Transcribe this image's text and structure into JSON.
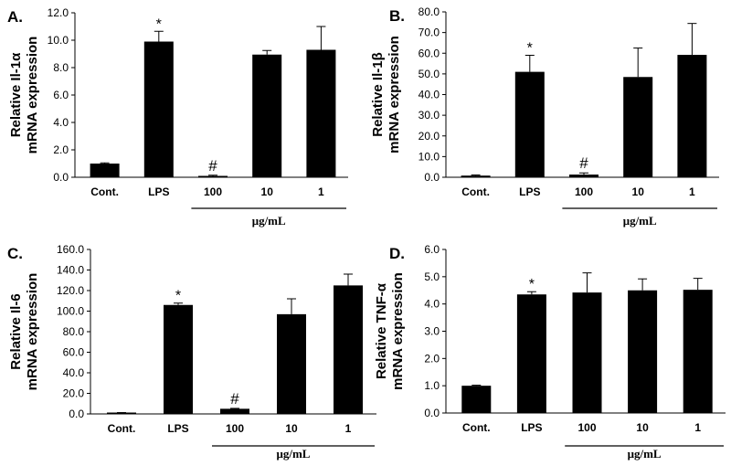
{
  "panels_order": [
    "A",
    "B",
    "C",
    "D"
  ],
  "units_label": "μg/mL",
  "chart_data": [
    {
      "type": "bar",
      "panel_label": "A.",
      "ylabel_line1": "Relative Il-1α",
      "ylabel_line2": "mRNA expression",
      "categories": [
        "Cont.",
        "LPS",
        "100",
        "10",
        "1"
      ],
      "values": [
        1.0,
        9.9,
        0.1,
        8.95,
        9.3
      ],
      "errors": [
        0.05,
        0.75,
        0.05,
        0.3,
        1.7
      ],
      "annotations": [
        "",
        "*",
        "#",
        "",
        ""
      ],
      "ylim": [
        0,
        12
      ],
      "yticks": [
        "0.0",
        "2.0",
        "4.0",
        "6.0",
        "8.0",
        "10.0",
        "12.0"
      ],
      "xgroup_label": "μg/mL",
      "group_range": [
        2,
        4
      ],
      "bar_color": "#000000"
    },
    {
      "type": "bar",
      "panel_label": "B.",
      "ylabel_line1": "Relative Il-1β",
      "ylabel_line2": "mRNA expression",
      "categories": [
        "Cont.",
        "LPS",
        "100",
        "10",
        "1"
      ],
      "values": [
        0.8,
        51.0,
        1.3,
        48.5,
        59.2
      ],
      "errors": [
        0.3,
        8.0,
        0.8,
        14.0,
        15.2
      ],
      "annotations": [
        "",
        "*",
        "#",
        "",
        ""
      ],
      "ylim": [
        0,
        80
      ],
      "yticks": [
        "0.0",
        "10.0",
        "20.0",
        "30.0",
        "40.0",
        "50.0",
        "60.0",
        "70.0",
        "80.0"
      ],
      "xgroup_label": "μg/mL",
      "group_range": [
        2,
        4
      ],
      "bar_color": "#000000"
    },
    {
      "type": "bar",
      "panel_label": "C.",
      "ylabel_line1": "Relative Il-6",
      "ylabel_line2": "mRNA expression",
      "categories": [
        "Cont.",
        "LPS",
        "100",
        "10",
        "1"
      ],
      "values": [
        1.0,
        106.0,
        5.0,
        97.0,
        125.0
      ],
      "errors": [
        0.3,
        1.8,
        0.4,
        15.0,
        11.0
      ],
      "annotations": [
        "",
        "*",
        "#",
        "",
        ""
      ],
      "ylim": [
        0,
        160
      ],
      "yticks": [
        "0.0",
        "20.0",
        "40.0",
        "60.0",
        "80.0",
        "100.0",
        "120.0",
        "140.0",
        "160.0"
      ],
      "xgroup_label": "μg/mL",
      "group_range": [
        2,
        4
      ],
      "bar_color": "#000000"
    },
    {
      "type": "bar",
      "panel_label": "D.",
      "ylabel_line1": "Relative TNF-α",
      "ylabel_line2": "mRNA expression",
      "categories": [
        "Cont.",
        "LPS",
        "100",
        "10",
        "1"
      ],
      "values": [
        1.0,
        4.35,
        4.42,
        4.5,
        4.52
      ],
      "errors": [
        0.02,
        0.1,
        0.72,
        0.42,
        0.42
      ],
      "annotations": [
        "",
        "*",
        "",
        "",
        ""
      ],
      "ylim": [
        0,
        6
      ],
      "yticks": [
        "0.0",
        "1.0",
        "2.0",
        "3.0",
        "4.0",
        "5.0",
        "6.0"
      ],
      "xgroup_label": "μg/mL",
      "group_range": [
        2,
        4
      ],
      "bar_color": "#000000"
    }
  ]
}
